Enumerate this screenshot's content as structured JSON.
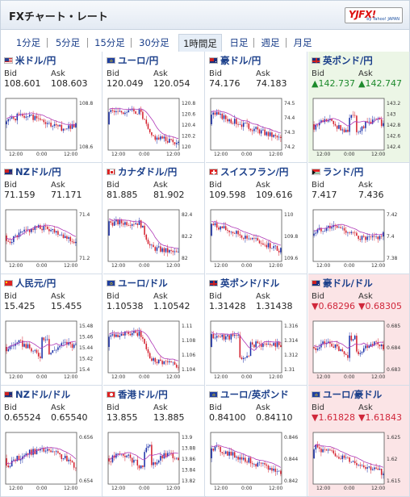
{
  "header": {
    "title": "FXチャート・レート",
    "logo_main": "YJFX!",
    "logo_sub": "by Yahoo! JAPAN"
  },
  "tabs": [
    {
      "label": "1分足",
      "active": false
    },
    {
      "label": "5分足",
      "active": false
    },
    {
      "label": "15分足",
      "active": false
    },
    {
      "label": "30分足",
      "active": false
    },
    {
      "label": "1時間足",
      "active": true
    },
    {
      "label": "日足",
      "active": false
    },
    {
      "label": "週足",
      "active": false
    },
    {
      "label": "月足",
      "active": false
    }
  ],
  "labels": {
    "bid": "Bid",
    "ask": "Ask"
  },
  "colors": {
    "up_bg": "#ecf6e6",
    "down_bg": "#fbe4e6",
    "up_text": "#1d8a2c",
    "down_text": "#d0263a",
    "bull": "#1a2fa8",
    "bear": "#d4202e",
    "ma": "#b03ab8"
  },
  "pairs": [
    {
      "name": "米ドル/円",
      "flag": "us-flag-icon",
      "bid": "108.601",
      "ask": "108.603",
      "trend": "none",
      "chart": {
        "ticks": [
          "108.8",
          "108.6"
        ],
        "x_labels": [
          "12:00",
          "0:00",
          "12:00"
        ],
        "seed": 1,
        "shape": "flat"
      }
    },
    {
      "name": "ユーロ/円",
      "flag": "eu-flag-icon",
      "bid": "120.049",
      "ask": "120.054",
      "trend": "none",
      "chart": {
        "ticks": [
          "120.8",
          "120.6",
          "120.4",
          "120.2",
          "120"
        ],
        "x_labels": [
          "12:00",
          "0:00",
          "12:00"
        ],
        "seed": 2,
        "shape": "drop"
      }
    },
    {
      "name": "豪ドル/円",
      "flag": "au-flag-icon",
      "bid": "74.176",
      "ask": "74.183",
      "trend": "none",
      "chart": {
        "ticks": [
          "74.5",
          "74.4",
          "74.3",
          "74.2"
        ],
        "x_labels": [
          "12:00",
          "0:00",
          "12:00"
        ],
        "seed": 3,
        "shape": "down"
      }
    },
    {
      "name": "英ポンド/円",
      "flag": "uk-flag-icon",
      "bid": "142.737",
      "ask": "142.747",
      "trend": "up",
      "chart": {
        "ticks": [
          "143.2",
          "143",
          "142.8",
          "142.6",
          "142.4"
        ],
        "x_labels": [
          "12:00",
          "0:00",
          "12:00"
        ],
        "seed": 4,
        "shape": "spike"
      }
    },
    {
      "name": "NZドル/円",
      "flag": "nz-flag-icon",
      "bid": "71.159",
      "ask": "71.171",
      "trend": "none",
      "chart": {
        "ticks": [
          "71.4",
          "71.2"
        ],
        "x_labels": [
          "12:00",
          "0:00",
          "12:00"
        ],
        "seed": 5,
        "shape": "hump"
      }
    },
    {
      "name": "カナダドル/円",
      "flag": "ca-flag-icon",
      "bid": "81.885",
      "ask": "81.902",
      "trend": "none",
      "chart": {
        "ticks": [
          "82.4",
          "82.2",
          "82"
        ],
        "x_labels": [
          "12:00",
          "0:00",
          "12:00"
        ],
        "seed": 6,
        "shape": "drop"
      }
    },
    {
      "name": "スイスフラン/円",
      "flag": "ch-flag-icon",
      "bid": "109.598",
      "ask": "109.616",
      "trend": "none",
      "chart": {
        "ticks": [
          "110",
          "109.8",
          "109.6"
        ],
        "x_labels": [
          "12:00",
          "0:00",
          "12:00"
        ],
        "seed": 7,
        "shape": "down"
      }
    },
    {
      "name": "ランド/円",
      "flag": "za-flag-icon",
      "bid": "7.417",
      "ask": "7.436",
      "trend": "none",
      "chart": {
        "ticks": [
          "7.42",
          "7.4",
          "7.38"
        ],
        "x_labels": [
          "12:00",
          "0:00",
          "12:00"
        ],
        "seed": 8,
        "shape": "flat"
      }
    },
    {
      "name": "人民元/円",
      "flag": "cn-flag-icon",
      "bid": "15.425",
      "ask": "15.455",
      "trend": "none",
      "chart": {
        "ticks": [
          "15.48",
          "15.46",
          "15.44",
          "15.42",
          "15.4"
        ],
        "x_labels": [
          "12:00",
          "0:00",
          "12:00"
        ],
        "seed": 9,
        "shape": "spike"
      }
    },
    {
      "name": "ユーロ/ドル",
      "flag": "eu-flag-icon",
      "bid": "1.10538",
      "ask": "1.10542",
      "trend": "none",
      "chart": {
        "ticks": [
          "1.11",
          "1.108",
          "1.106",
          "1.104"
        ],
        "x_labels": [
          "12:00",
          "0:00",
          "12:00"
        ],
        "seed": 10,
        "shape": "drop"
      }
    },
    {
      "name": "英ポンド/ドル",
      "flag": "uk-flag-icon",
      "bid": "1.31428",
      "ask": "1.31438",
      "trend": "none",
      "chart": {
        "ticks": [
          "1.316",
          "1.314",
          "1.312",
          "1.31"
        ],
        "x_labels": [
          "12:00",
          "0:00",
          "12:00"
        ],
        "seed": 11,
        "shape": "dip"
      }
    },
    {
      "name": "豪ドル/ドル",
      "flag": "au-flag-icon",
      "bid": "0.68296",
      "ask": "0.68305",
      "trend": "down",
      "chart": {
        "ticks": [
          "0.685",
          "0.684",
          "0.683"
        ],
        "x_labels": [
          "12:00",
          "0:00",
          "12:00"
        ],
        "seed": 12,
        "shape": "spike"
      }
    },
    {
      "name": "NZドル/ドル",
      "flag": "nz-flag-icon",
      "bid": "0.65524",
      "ask": "0.65540",
      "trend": "none",
      "chart": {
        "ticks": [
          "0.656",
          "0.654"
        ],
        "x_labels": [
          "12:00",
          "0:00",
          "12:00"
        ],
        "seed": 13,
        "shape": "hump"
      }
    },
    {
      "name": "香港ドル/円",
      "flag": "hk-flag-icon",
      "bid": "13.855",
      "ask": "13.885",
      "trend": "none",
      "chart": {
        "ticks": [
          "13.9",
          "13.88",
          "13.86",
          "13.84",
          "13.82"
        ],
        "x_labels": [
          "12:00",
          "0:00",
          "12:00"
        ],
        "seed": 14,
        "shape": "spike"
      }
    },
    {
      "name": "ユーロ/英ポンド",
      "flag": "eu-flag-icon",
      "bid": "0.84100",
      "ask": "0.84110",
      "trend": "none",
      "chart": {
        "ticks": [
          "0.846",
          "0.844",
          "0.842"
        ],
        "x_labels": [
          "12:00",
          "0:00",
          "12:00"
        ],
        "seed": 15,
        "shape": "down"
      }
    },
    {
      "name": "ユーロ/豪ドル",
      "flag": "eu-flag-icon",
      "bid": "1.61828",
      "ask": "1.61843",
      "trend": "down",
      "chart": {
        "ticks": [
          "1.625",
          "1.62",
          "1.615"
        ],
        "x_labels": [
          "12:00",
          "0:00",
          "12:00"
        ],
        "seed": 16,
        "shape": "down"
      }
    }
  ]
}
